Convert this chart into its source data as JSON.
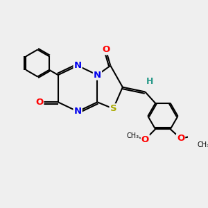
{
  "background_color": "#efefef",
  "bond_color": "#000000",
  "atom_colors": {
    "N": "#0000ee",
    "O": "#ff0000",
    "S": "#aaaa00",
    "H": "#2a9a8a",
    "C": "#000000"
  },
  "font_size": 9.5,
  "figsize": [
    3.0,
    3.0
  ],
  "dpi": 100
}
